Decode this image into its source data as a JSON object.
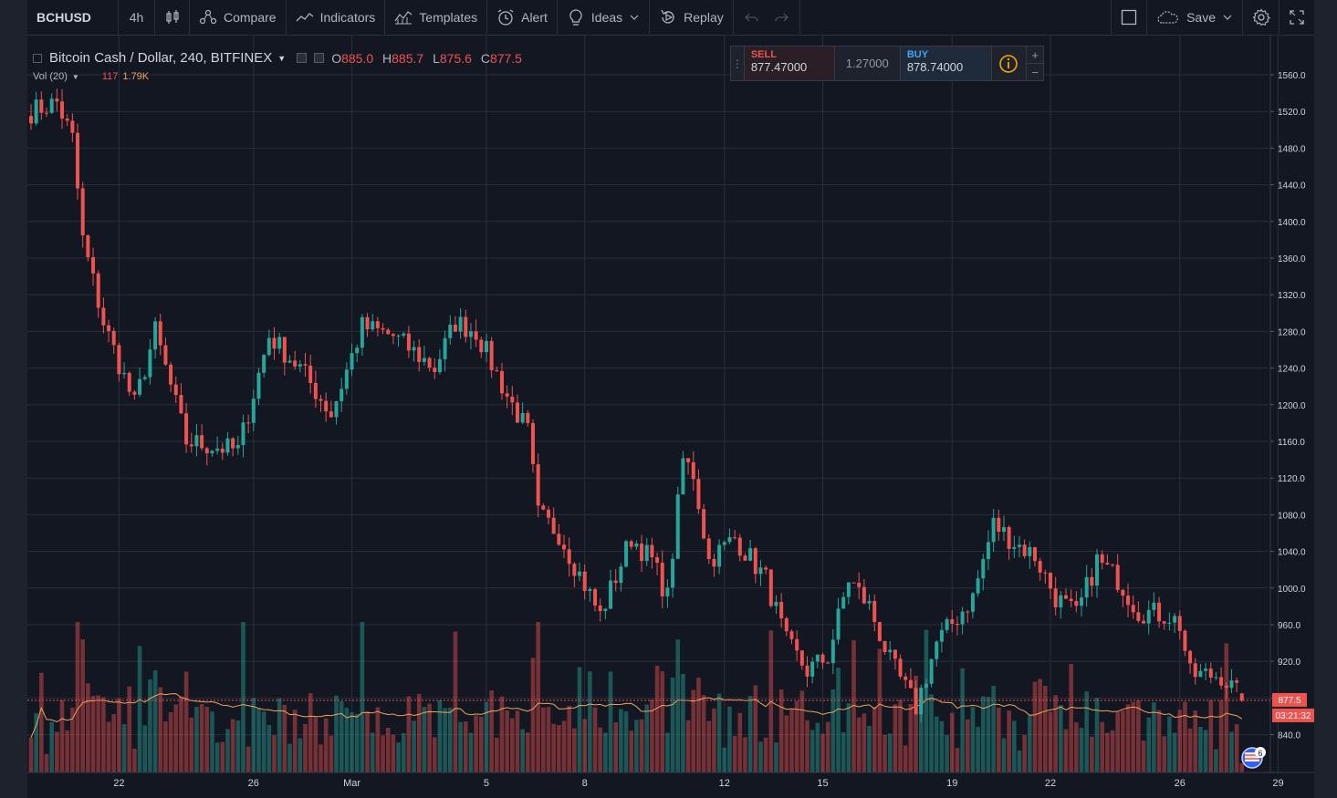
{
  "toolbar": {
    "symbol": "BCHUSD",
    "interval": "4h",
    "compare": "Compare",
    "indicators": "Indicators",
    "templates": "Templates",
    "alert": "Alert",
    "ideas": "Ideas",
    "replay": "Replay",
    "save": "Save"
  },
  "legend": {
    "title": "Bitcoin Cash / Dollar, 240, BITFINEX",
    "o_label": "O",
    "o_value": "885.0",
    "h_label": "H",
    "h_value": "885.7",
    "l_label": "L",
    "l_value": "875.6",
    "c_label": "C",
    "c_value": "877.5",
    "vol_label": "Vol (20)",
    "vol_value": "117",
    "vol_ma": "1.79K"
  },
  "trade": {
    "sell_label": "SELL",
    "sell_price": "877.47000",
    "spread": "1.27000",
    "buy_label": "BUY",
    "buy_price": "878.74000",
    "plus": "+",
    "minus": "−"
  },
  "price_axis": {
    "ticks": [
      "1560.0",
      "1520.0",
      "1480.0",
      "1440.0",
      "1400.0",
      "1360.0",
      "1320.0",
      "1280.0",
      "1240.0",
      "1200.0",
      "1160.0",
      "1120.0",
      "1080.0",
      "1040.0",
      "1000.0",
      "960.0",
      "920.0",
      "880.0",
      "840.0"
    ],
    "last_price": "877.5",
    "countdown": "03:21:32"
  },
  "time_axis": {
    "ticks": [
      "22",
      "26",
      "Mar",
      "5",
      "8",
      "12",
      "15",
      "19",
      "22",
      "26",
      "29"
    ]
  },
  "badge": {
    "count": "6"
  },
  "colors": {
    "up": "#26a69a",
    "down": "#ef5350",
    "background": "#131722",
    "grid": "#2a2e39",
    "ma": "#f0a35f"
  },
  "chart_data": {
    "type": "candlestick",
    "y_range": [
      820,
      1580
    ],
    "key_points": [
      {
        "t": 0,
        "p": 1520
      },
      {
        "t": 5,
        "p": 1530
      },
      {
        "t": 8,
        "p": 1490
      },
      {
        "t": 10,
        "p": 1380
      },
      {
        "t": 14,
        "p": 1290
      },
      {
        "t": 20,
        "p": 1200
      },
      {
        "t": 24,
        "p": 1280
      },
      {
        "t": 30,
        "p": 1160
      },
      {
        "t": 40,
        "p": 1150
      },
      {
        "t": 46,
        "p": 1275
      },
      {
        "t": 52,
        "p": 1240
      },
      {
        "t": 58,
        "p": 1190
      },
      {
        "t": 64,
        "p": 1285
      },
      {
        "t": 70,
        "p": 1275
      },
      {
        "t": 78,
        "p": 1240
      },
      {
        "t": 82,
        "p": 1290
      },
      {
        "t": 86,
        "p": 1280
      },
      {
        "t": 92,
        "p": 1210
      },
      {
        "t": 96,
        "p": 1170
      },
      {
        "t": 98,
        "p": 1080
      },
      {
        "t": 102,
        "p": 1060
      },
      {
        "t": 110,
        "p": 970
      },
      {
        "t": 116,
        "p": 1055
      },
      {
        "t": 120,
        "p": 1030
      },
      {
        "t": 123,
        "p": 990
      },
      {
        "t": 126,
        "p": 1140
      },
      {
        "t": 128,
        "p": 1125
      },
      {
        "t": 131,
        "p": 1030
      },
      {
        "t": 136,
        "p": 1055
      },
      {
        "t": 142,
        "p": 1010
      },
      {
        "t": 146,
        "p": 940
      },
      {
        "t": 150,
        "p": 910
      },
      {
        "t": 154,
        "p": 925
      },
      {
        "t": 158,
        "p": 1010
      },
      {
        "t": 162,
        "p": 980
      },
      {
        "t": 166,
        "p": 920
      },
      {
        "t": 171,
        "p": 870
      },
      {
        "t": 175,
        "p": 940
      },
      {
        "t": 182,
        "p": 990
      },
      {
        "t": 186,
        "p": 1070
      },
      {
        "t": 190,
        "p": 1050
      },
      {
        "t": 194,
        "p": 1035
      },
      {
        "t": 198,
        "p": 990
      },
      {
        "t": 202,
        "p": 970
      },
      {
        "t": 206,
        "p": 1030
      },
      {
        "t": 210,
        "p": 1010
      },
      {
        "t": 214,
        "p": 975
      },
      {
        "t": 220,
        "p": 970
      },
      {
        "t": 222,
        "p": 960
      },
      {
        "t": 224,
        "p": 905
      },
      {
        "t": 230,
        "p": 905
      },
      {
        "t": 234,
        "p": 877.5
      }
    ],
    "last_candle": {
      "open": 885.0,
      "high": 885.7,
      "low": 875.6,
      "close": 877.5
    },
    "volume_last": 117,
    "volume_ma": 1790
  }
}
